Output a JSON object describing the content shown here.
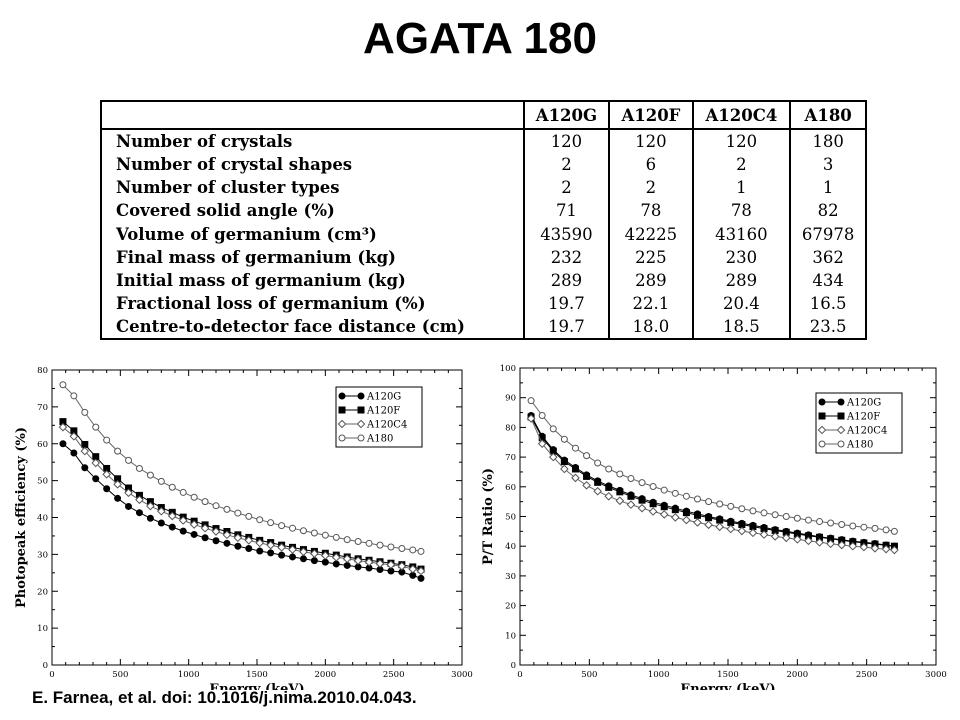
{
  "title": "AGATA 180",
  "table": {
    "header_blank": "",
    "columns": [
      "A120G",
      "A120F",
      "A120C4",
      "A180"
    ],
    "rows": [
      {
        "label": "Number of crystals",
        "values": [
          "120",
          "120",
          "120",
          "180"
        ]
      },
      {
        "label": "Number of crystal shapes",
        "values": [
          "2",
          "6",
          "2",
          "3"
        ]
      },
      {
        "label": "Number of cluster types",
        "values": [
          "2",
          "2",
          "1",
          "1"
        ]
      },
      {
        "label": "Covered solid angle (%)",
        "values": [
          "71",
          "78",
          "78",
          "82"
        ]
      },
      {
        "label": "Volume of germanium (cm³)",
        "values": [
          "43590",
          "42225",
          "43160",
          "67978"
        ]
      },
      {
        "label": "Final mass of germanium (kg)",
        "values": [
          "232",
          "225",
          "230",
          "362"
        ]
      },
      {
        "label": "Initial mass of germanium (kg)",
        "values": [
          "289",
          "289",
          "289",
          "434"
        ]
      },
      {
        "label": "Fractional loss of germanium (%)",
        "values": [
          "19.7",
          "22.1",
          "20.4",
          "16.5"
        ]
      },
      {
        "label": "Centre-to-detector face distance (cm)",
        "values": [
          "19.7",
          "18.0",
          "18.5",
          "23.5"
        ]
      }
    ]
  },
  "chart_data": [
    {
      "type": "line",
      "xlabel": "Energy (keV)",
      "ylabel": "Photopeak efficiency (%)",
      "xlim": [
        0,
        3000
      ],
      "ylim": [
        0,
        80
      ],
      "xticks": [
        0,
        500,
        1000,
        1500,
        2000,
        2500,
        3000
      ],
      "yticks": [
        0,
        10,
        20,
        30,
        40,
        50,
        60,
        70,
        80
      ],
      "legend_position": "top-right",
      "x": [
        80,
        160,
        240,
        320,
        400,
        480,
        560,
        640,
        720,
        800,
        880,
        960,
        1040,
        1120,
        1200,
        1280,
        1360,
        1440,
        1520,
        1600,
        1680,
        1760,
        1840,
        1920,
        2000,
        2080,
        2160,
        2240,
        2320,
        2400,
        2480,
        2560,
        2640,
        2700
      ],
      "series": [
        {
          "name": "A120G",
          "marker": "filled-circle",
          "values": [
            60.0,
            57.5,
            53.5,
            50.5,
            47.8,
            45.2,
            43.0,
            41.3,
            39.8,
            38.5,
            37.4,
            36.3,
            35.4,
            34.5,
            33.7,
            33.0,
            32.2,
            31.6,
            30.9,
            30.4,
            29.8,
            29.3,
            28.8,
            28.3,
            27.9,
            27.4,
            27.0,
            26.6,
            26.3,
            25.9,
            25.5,
            25.2,
            24.3,
            23.5
          ]
        },
        {
          "name": "A120F",
          "marker": "filled-square",
          "values": [
            66.0,
            63.5,
            59.8,
            56.5,
            53.3,
            50.5,
            48.0,
            46.0,
            44.3,
            42.7,
            41.4,
            40.1,
            39.0,
            38.0,
            37.0,
            36.2,
            35.3,
            34.6,
            33.8,
            33.2,
            32.5,
            31.9,
            31.3,
            30.8,
            30.3,
            29.8,
            29.3,
            28.8,
            28.4,
            28.0,
            27.6,
            27.2,
            26.6,
            26.0
          ]
        },
        {
          "name": "A120C4",
          "marker": "open-diamond",
          "values": [
            64.5,
            62.0,
            58.0,
            54.8,
            51.7,
            49.0,
            46.7,
            44.8,
            43.1,
            41.7,
            40.4,
            39.2,
            38.1,
            37.1,
            36.2,
            35.3,
            34.5,
            33.8,
            33.1,
            32.5,
            31.9,
            31.3,
            30.7,
            30.2,
            29.7,
            29.2,
            28.8,
            28.3,
            27.9,
            27.5,
            27.2,
            26.8,
            26.0,
            25.5
          ]
        },
        {
          "name": "A180",
          "marker": "open-circle",
          "values": [
            76.0,
            73.0,
            68.5,
            64.5,
            61.0,
            58.0,
            55.5,
            53.3,
            51.5,
            49.8,
            48.2,
            46.8,
            45.5,
            44.3,
            43.2,
            42.2,
            41.2,
            40.3,
            39.4,
            38.6,
            37.8,
            37.1,
            36.4,
            35.8,
            35.2,
            34.6,
            34.0,
            33.5,
            33.0,
            32.5,
            32.0,
            31.6,
            31.2,
            30.8
          ]
        }
      ]
    },
    {
      "type": "line",
      "xlabel": "Energy (keV)",
      "ylabel": "P/T Ratio (%)",
      "xlim": [
        0,
        3000
      ],
      "ylim": [
        0,
        100
      ],
      "xticks": [
        0,
        500,
        1000,
        1500,
        2000,
        2500,
        3000
      ],
      "yticks": [
        0,
        10,
        20,
        30,
        40,
        50,
        60,
        70,
        80,
        90,
        100
      ],
      "legend_position": "top-right",
      "x": [
        80,
        160,
        240,
        320,
        400,
        480,
        560,
        640,
        720,
        800,
        880,
        960,
        1040,
        1120,
        1200,
        1280,
        1360,
        1440,
        1520,
        1600,
        1680,
        1760,
        1840,
        1920,
        2000,
        2080,
        2160,
        2240,
        2320,
        2400,
        2480,
        2560,
        2640,
        2700
      ],
      "series": [
        {
          "name": "A120G",
          "marker": "filled-circle",
          "values": [
            84.0,
            77.0,
            72.5,
            69.0,
            66.5,
            64.0,
            62.0,
            60.3,
            58.8,
            57.3,
            56.0,
            54.8,
            53.8,
            52.8,
            51.8,
            50.9,
            50.0,
            49.2,
            48.4,
            47.7,
            47.0,
            46.3,
            45.6,
            45.0,
            44.4,
            43.8,
            43.2,
            42.7,
            42.2,
            41.7,
            41.3,
            40.9,
            40.4,
            40.0
          ]
        },
        {
          "name": "A120F",
          "marker": "filled-square",
          "values": [
            83.5,
            76.5,
            72.0,
            68.5,
            66.0,
            63.5,
            61.5,
            59.8,
            58.3,
            56.8,
            55.5,
            54.3,
            53.3,
            52.3,
            51.3,
            50.4,
            49.6,
            48.8,
            48.0,
            47.3,
            46.6,
            45.9,
            45.3,
            44.7,
            44.1,
            43.5,
            43.0,
            42.5,
            42.0,
            41.5,
            41.1,
            40.7,
            40.3,
            40.0
          ]
        },
        {
          "name": "A120C4",
          "marker": "open-diamond",
          "values": [
            83.0,
            74.5,
            70.0,
            66.0,
            63.0,
            60.5,
            58.5,
            56.8,
            55.3,
            54.0,
            52.8,
            51.7,
            50.7,
            49.7,
            48.8,
            48.0,
            47.2,
            46.5,
            45.8,
            45.1,
            44.5,
            43.9,
            43.3,
            42.8,
            42.3,
            41.8,
            41.3,
            40.8,
            40.4,
            40.0,
            39.7,
            39.3,
            39.0,
            38.7
          ]
        },
        {
          "name": "A180",
          "marker": "open-circle",
          "values": [
            89.0,
            84.0,
            79.5,
            76.0,
            73.0,
            70.5,
            68.0,
            66.0,
            64.3,
            62.8,
            61.4,
            60.1,
            58.9,
            57.8,
            56.8,
            55.9,
            55.0,
            54.2,
            53.4,
            52.6,
            51.9,
            51.2,
            50.6,
            50.0,
            49.4,
            48.8,
            48.3,
            47.8,
            47.3,
            46.8,
            46.4,
            46.0,
            45.5,
            45.0
          ]
        }
      ]
    }
  ],
  "credit": "E. Farnea, et al. doi: 10.1016/j.nima.2010.04.043."
}
